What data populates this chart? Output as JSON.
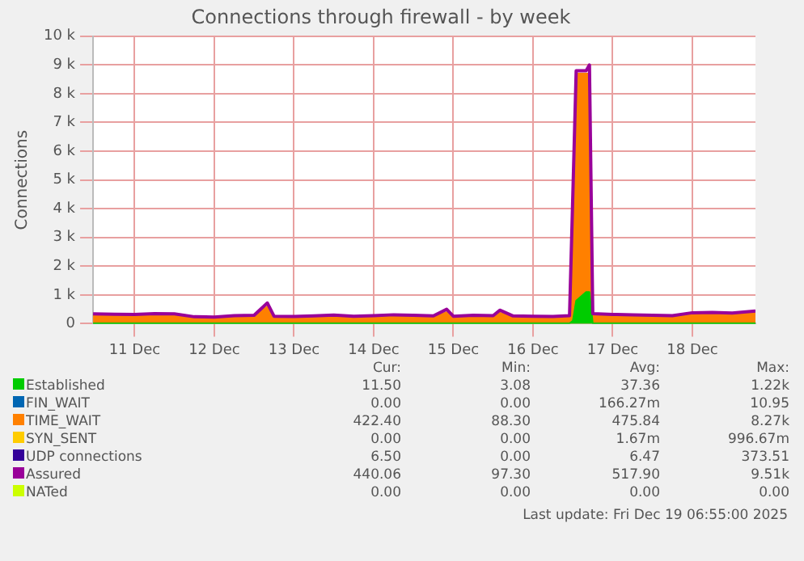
{
  "chart_data": {
    "type": "area",
    "title": "Connections through firewall - by week",
    "ylabel": "Connections",
    "x": [
      "2025-12-10T23:30",
      "2025-12-11T06:00",
      "2025-12-11T12:00",
      "2025-12-11T18:00",
      "2025-12-12T00:00",
      "2025-12-12T06:00",
      "2025-12-12T12:00",
      "2025-12-12T18:00",
      "2025-12-13T00:00",
      "2025-12-13T04:00",
      "2025-12-13T06:00",
      "2025-12-13T12:00",
      "2025-12-13T18:00",
      "2025-12-14T00:00",
      "2025-12-14T06:00",
      "2025-12-14T12:00",
      "2025-12-14T18:00",
      "2025-12-15T00:00",
      "2025-12-15T06:00",
      "2025-12-15T10:00",
      "2025-12-15T12:00",
      "2025-12-15T18:00",
      "2025-12-16T00:00",
      "2025-12-16T02:00",
      "2025-12-16T06:00",
      "2025-12-16T12:00",
      "2025-12-16T18:00",
      "2025-12-16T23:00",
      "2025-12-17T00:00",
      "2025-12-17T01:00",
      "2025-12-17T04:00",
      "2025-12-17T05:00",
      "2025-12-17T06:00",
      "2025-12-17T12:00",
      "2025-12-17T18:00",
      "2025-12-18T00:00",
      "2025-12-18T06:00",
      "2025-12-18T12:00",
      "2025-12-18T18:00",
      "2025-12-19T00:00",
      "2025-12-19T07:00"
    ],
    "series": [
      {
        "name": "Established",
        "color": "#00cc00",
        "values": [
          10,
          10,
          10,
          10,
          10,
          10,
          10,
          10,
          10,
          10,
          10,
          10,
          10,
          10,
          10,
          10,
          10,
          10,
          10,
          10,
          10,
          10,
          10,
          10,
          10,
          10,
          10,
          10,
          100,
          800,
          1100,
          1100,
          10,
          10,
          10,
          10,
          10,
          10,
          10,
          10,
          10
        ]
      },
      {
        "name": "FIN_WAIT",
        "type": "line",
        "color": "#0066b3",
        "values": [
          null,
          null,
          null,
          null,
          null,
          null,
          null,
          null,
          null,
          null,
          null,
          null,
          null,
          null,
          null,
          null,
          null,
          null,
          null,
          null,
          null,
          null,
          null,
          null,
          null,
          null,
          null,
          null,
          null,
          null,
          null,
          null,
          null,
          null,
          null,
          null,
          null,
          null,
          null,
          null,
          null
        ]
      },
      {
        "name": "TIME_WAIT",
        "color": "#ff8000",
        "values": [
          300,
          300,
          280,
          310,
          300,
          210,
          200,
          250,
          260,
          600,
          230,
          220,
          240,
          270,
          230,
          250,
          280,
          260,
          240,
          400,
          230,
          260,
          250,
          380,
          240,
          230,
          220,
          250,
          4000,
          8700,
          8700,
          8700,
          300,
          280,
          270,
          250,
          240,
          330,
          340,
          320,
          400
        ]
      },
      {
        "name": "SYN_SENT",
        "type": "line",
        "color": "#ffcc00",
        "values": [
          null,
          null,
          null,
          null,
          null,
          null,
          null,
          null,
          null,
          null,
          null,
          null,
          null,
          null,
          null,
          null,
          null,
          null,
          null,
          null,
          null,
          null,
          null,
          null,
          null,
          null,
          null,
          null,
          null,
          null,
          null,
          null,
          null,
          null,
          null,
          null,
          null,
          null,
          null,
          null,
          null
        ]
      },
      {
        "name": "UDP connections",
        "type": "line",
        "color": "#330099",
        "values": [
          null,
          null,
          null,
          null,
          null,
          null,
          null,
          null,
          null,
          null,
          null,
          null,
          null,
          null,
          null,
          null,
          null,
          null,
          null,
          null,
          null,
          null,
          null,
          null,
          null,
          null,
          null,
          null,
          null,
          null,
          null,
          null,
          null,
          null,
          null,
          null,
          null,
          null,
          null,
          null,
          null
        ]
      },
      {
        "name": "Assured",
        "type": "line",
        "color": "#990099",
        "values": [
          340,
          330,
          320,
          350,
          340,
          240,
          230,
          280,
          290,
          720,
          260,
          250,
          270,
          300,
          260,
          280,
          310,
          290,
          270,
          500,
          260,
          290,
          280,
          470,
          270,
          260,
          250,
          280,
          4500,
          8800,
          8800,
          9000,
          350,
          320,
          310,
          290,
          280,
          380,
          390,
          370,
          440
        ]
      },
      {
        "name": "NATed",
        "type": "line",
        "color": "#ccff00",
        "values": [
          null,
          null,
          null,
          null,
          null,
          null,
          null,
          null,
          null,
          null,
          null,
          null,
          null,
          null,
          null,
          null,
          null,
          null,
          null,
          null,
          null,
          null,
          null,
          null,
          null,
          null,
          null,
          null,
          null,
          null,
          null,
          null,
          null,
          null,
          null,
          null,
          null,
          null,
          null,
          null,
          null
        ]
      }
    ],
    "xlim": [
      "2025-12-10T23:30",
      "2025-12-19T07:00"
    ],
    "xticks": [
      {
        "value": "2025-12-11T12:00",
        "label": "11 Dec"
      },
      {
        "value": "2025-12-12T12:00",
        "label": "12 Dec"
      },
      {
        "value": "2025-12-13T12:00",
        "label": "13 Dec"
      },
      {
        "value": "2025-12-14T12:00",
        "label": "14 Dec"
      },
      {
        "value": "2025-12-15T12:00",
        "label": "15 Dec"
      },
      {
        "value": "2025-12-16T12:00",
        "label": "16 Dec"
      },
      {
        "value": "2025-12-17T12:00",
        "label": "17 Dec"
      },
      {
        "value": "2025-12-18T12:00",
        "label": "18 Dec"
      }
    ],
    "ylim": [
      0,
      10000
    ],
    "yticks": [
      0,
      {
        "value": 1000,
        "label": "1 k"
      },
      {
        "value": 2000,
        "label": "2 k"
      },
      {
        "value": 3000,
        "label": "3 k"
      },
      {
        "value": 4000,
        "label": "4 k"
      },
      {
        "value": 5000,
        "label": "5 k"
      },
      {
        "value": 6000,
        "label": "6 k"
      },
      {
        "value": 7000,
        "label": "7 k"
      },
      {
        "value": 8000,
        "label": "8 k"
      },
      {
        "value": 9000,
        "label": "9 k"
      },
      {
        "value": 10000,
        "label": "10 k"
      }
    ],
    "grid": true,
    "legend": "bottom",
    "annotations": [
      "Cur:",
      "Min:",
      "Avg:",
      "Max:",
      "11.50",
      "3.08",
      "37.36",
      "1.22k",
      "0.00",
      "0.00",
      "166.27m",
      "10.95",
      "422.40",
      "88.30",
      "475.84",
      "8.27k",
      "0.00",
      "0.00",
      "1.67m",
      "996.67m",
      "6.50",
      "0.00",
      "6.47",
      "373.51",
      "440.06",
      "97.30",
      "517.90",
      "9.51k",
      "0.00",
      "0.00",
      "0.00",
      "0.00",
      "Last update: Fri Dec 19 06:55:00 2025"
    ]
  }
}
